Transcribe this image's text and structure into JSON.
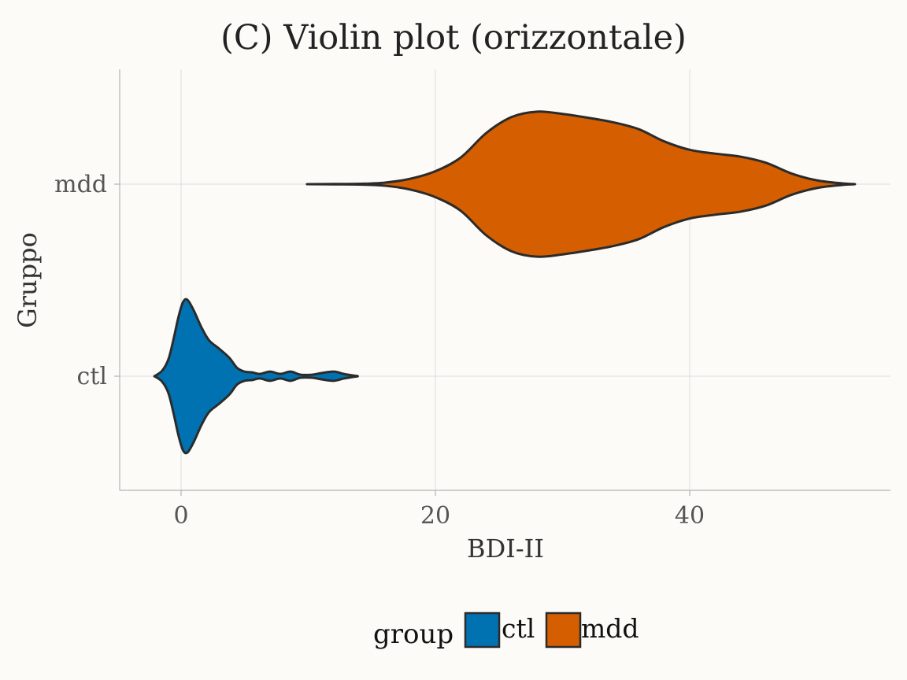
{
  "chart_data": {
    "type": "violin",
    "orientation": "horizontal",
    "title": "(C) Violin plot (orizzontale)",
    "xlabel": "BDI-II",
    "ylabel": "Gruppo",
    "xlim": [
      -4.5,
      55
    ],
    "x_ticks": [
      0,
      20,
      40
    ],
    "x_tick_labels": [
      "0",
      "20",
      "40"
    ],
    "categories": [
      "ctl",
      "mdd"
    ],
    "grid": true,
    "legend": {
      "title": "group",
      "position": "bottom",
      "entries": [
        {
          "label": "ctl",
          "color": "#0072B2"
        },
        {
          "label": "mdd",
          "color": "#D55E00"
        }
      ]
    },
    "series": [
      {
        "name": "ctl",
        "color": "#0072B2",
        "density": [
          [
            -2.1,
            0.0
          ],
          [
            -1.5,
            0.07
          ],
          [
            -1.0,
            0.22
          ],
          [
            -0.6,
            0.48
          ],
          [
            -0.2,
            0.78
          ],
          [
            0.15,
            0.97
          ],
          [
            0.5,
            1.0
          ],
          [
            1.0,
            0.86
          ],
          [
            1.6,
            0.64
          ],
          [
            2.2,
            0.47
          ],
          [
            3.0,
            0.36
          ],
          [
            3.8,
            0.24
          ],
          [
            4.4,
            0.11
          ],
          [
            5.0,
            0.06
          ],
          [
            5.6,
            0.05
          ],
          [
            6.2,
            0.03
          ],
          [
            7.0,
            0.06
          ],
          [
            7.8,
            0.03
          ],
          [
            8.6,
            0.06
          ],
          [
            9.4,
            0.02
          ],
          [
            10.3,
            0.02
          ],
          [
            11.0,
            0.04
          ],
          [
            12.0,
            0.06
          ],
          [
            12.8,
            0.03
          ],
          [
            13.5,
            0.01
          ],
          [
            13.9,
            0.0
          ]
        ]
      },
      {
        "name": "mdd",
        "color": "#D55E00",
        "density": [
          [
            9.9,
            0.0
          ],
          [
            12.0,
            0.002
          ],
          [
            14.0,
            0.005
          ],
          [
            16.0,
            0.02
          ],
          [
            18.0,
            0.07
          ],
          [
            20.0,
            0.17
          ],
          [
            22.0,
            0.35
          ],
          [
            24.0,
            0.67
          ],
          [
            26.0,
            0.88
          ],
          [
            28.0,
            0.95
          ],
          [
            30.0,
            0.92
          ],
          [
            32.0,
            0.87
          ],
          [
            34.0,
            0.81
          ],
          [
            36.0,
            0.72
          ],
          [
            38.0,
            0.56
          ],
          [
            40.0,
            0.45
          ],
          [
            42.0,
            0.4
          ],
          [
            44.0,
            0.36
          ],
          [
            46.0,
            0.28
          ],
          [
            48.0,
            0.14
          ],
          [
            50.0,
            0.05
          ],
          [
            52.0,
            0.01
          ],
          [
            53.0,
            0.0
          ]
        ]
      }
    ]
  }
}
